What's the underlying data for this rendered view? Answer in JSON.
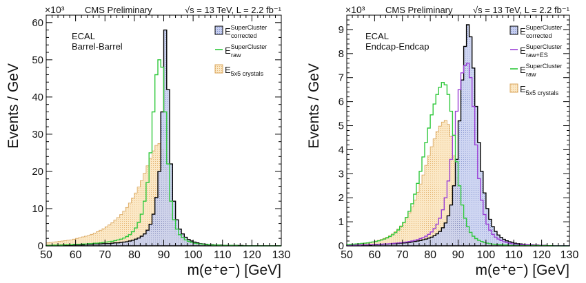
{
  "chart_data": [
    {
      "type": "histogram",
      "header_left": "CMS Preliminary",
      "header_right": "√s = 13 TeV, L = 2.2 fb⁻¹",
      "exponent_label": "×10³",
      "text_lines": [
        "ECAL",
        "Barrel-Barrel"
      ],
      "xlabel": "m(e⁺e⁻) [GeV]",
      "ylabel": "Events / GeV",
      "xlim": [
        50,
        130
      ],
      "ylim": [
        0,
        62
      ],
      "x_ticks": [
        50,
        60,
        70,
        80,
        90,
        100,
        110,
        120,
        130
      ],
      "y_ticks": [
        0,
        10,
        20,
        30,
        40,
        50,
        60
      ],
      "bin_edges": [
        50,
        51,
        52,
        53,
        54,
        55,
        56,
        57,
        58,
        59,
        60,
        61,
        62,
        63,
        64,
        65,
        66,
        67,
        68,
        69,
        70,
        71,
        72,
        73,
        74,
        75,
        76,
        77,
        78,
        79,
        80,
        81,
        82,
        83,
        84,
        85,
        86,
        87,
        88,
        89,
        90,
        91,
        92,
        93,
        94,
        95,
        96,
        97,
        98,
        99,
        100,
        101,
        102,
        103,
        104,
        105,
        106,
        107,
        108,
        109,
        110,
        111,
        112,
        113,
        114,
        115,
        116,
        117,
        118,
        119,
        120,
        121,
        122,
        123,
        124,
        125,
        126,
        127,
        128,
        129,
        130
      ],
      "series": [
        {
          "name": "E_corrected^SuperCluster",
          "legend_main": "E",
          "legend_sup": "SuperCluster",
          "legend_sub": "corrected",
          "style": "filled",
          "fill": "#b9c3e6",
          "stroke": "#000000",
          "values": [
            0.1,
            0.1,
            0.1,
            0.1,
            0.1,
            0.2,
            0.2,
            0.2,
            0.2,
            0.3,
            0.3,
            0.3,
            0.3,
            0.4,
            0.4,
            0.4,
            0.5,
            0.5,
            0.5,
            0.6,
            0.6,
            0.6,
            0.7,
            0.8,
            0.8,
            0.9,
            1.0,
            1.1,
            1.3,
            1.5,
            1.8,
            2.1,
            2.6,
            3.2,
            4.2,
            5.8,
            8.5,
            13.0,
            20.0,
            36.0,
            58.0,
            42.0,
            22.0,
            12.0,
            7.0,
            4.5,
            3.2,
            2.3,
            1.7,
            1.3,
            1.0,
            0.8,
            0.6,
            0.5,
            0.4,
            0.3,
            0.3,
            0.2,
            0.2,
            0.2,
            0.1,
            0.1,
            0.1,
            0.1,
            0.1,
            0.1,
            0.1,
            0.0,
            0.0,
            0.0,
            0.0,
            0.0,
            0.0,
            0.0,
            0.0,
            0.0,
            0.0,
            0.0,
            0.0,
            0.0
          ]
        },
        {
          "name": "E_raw^SuperCluster",
          "legend_main": "E",
          "legend_sup": "SuperCluster",
          "legend_sub": "raw",
          "style": "line",
          "fill": "none",
          "stroke": "#2fc83b",
          "values": [
            0.1,
            0.1,
            0.2,
            0.2,
            0.2,
            0.2,
            0.3,
            0.3,
            0.3,
            0.4,
            0.4,
            0.4,
            0.5,
            0.5,
            0.6,
            0.6,
            0.7,
            0.7,
            0.8,
            0.9,
            1.0,
            1.1,
            1.2,
            1.4,
            1.6,
            1.8,
            2.1,
            2.5,
            3.0,
            3.8,
            4.8,
            6.3,
            8.5,
            12.0,
            17.0,
            25.0,
            36.0,
            46.0,
            50.0,
            48.0,
            36.0,
            22.0,
            12.0,
            7.0,
            4.5,
            3.0,
            2.2,
            1.6,
            1.2,
            0.9,
            0.7,
            0.6,
            0.5,
            0.4,
            0.3,
            0.3,
            0.2,
            0.2,
            0.2,
            0.1,
            0.1,
            0.1,
            0.1,
            0.1,
            0.1,
            0.0,
            0.0,
            0.0,
            0.0,
            0.0,
            0.0,
            0.0,
            0.0,
            0.0,
            0.0,
            0.0,
            0.0,
            0.0,
            0.0,
            0.0
          ]
        },
        {
          "name": "E_5x5 crystals",
          "legend_main": "E",
          "legend_sup": "",
          "legend_sub": "5x5 crystals",
          "style": "filled",
          "fill": "#f9e3bd",
          "stroke": "#d9a45a",
          "values": [
            0.8,
            0.9,
            1.0,
            1.1,
            1.2,
            1.3,
            1.4,
            1.5,
            1.6,
            1.8,
            2.0,
            2.2,
            2.4,
            2.6,
            2.8,
            3.1,
            3.4,
            3.8,
            4.2,
            4.6,
            5.1,
            5.6,
            6.2,
            6.9,
            7.6,
            8.4,
            9.3,
            10.3,
            11.5,
            12.8,
            14.2,
            15.8,
            17.5,
            19.5,
            21.5,
            23.5,
            25.5,
            27.0,
            27.5,
            26.0,
            21.0,
            14.0,
            8.5,
            5.0,
            3.0,
            2.0,
            1.4,
            1.0,
            0.7,
            0.5,
            0.4,
            0.3,
            0.2,
            0.2,
            0.1,
            0.1,
            0.1,
            0.1,
            0.0,
            0.0,
            0.0,
            0.0,
            0.0,
            0.0,
            0.0,
            0.0,
            0.0,
            0.0,
            0.0,
            0.0,
            0.0,
            0.0,
            0.0,
            0.0,
            0.0,
            0.0,
            0.0,
            0.0,
            0.0,
            0.0
          ]
        }
      ]
    },
    {
      "type": "histogram",
      "header_left": "CMS Preliminary",
      "header_right": "√s = 13 TeV, L = 2.2 fb⁻¹",
      "exponent_label": "×10³",
      "text_lines": [
        "ECAL",
        "Endcap-Endcap"
      ],
      "xlabel": "m(e⁺e⁻) [GeV]",
      "ylabel": "Events / GeV",
      "xlim": [
        50,
        130
      ],
      "ylim": [
        0,
        9.6
      ],
      "x_ticks": [
        50,
        60,
        70,
        80,
        90,
        100,
        110,
        120,
        130
      ],
      "y_ticks": [
        0,
        1,
        2,
        3,
        4,
        5,
        6,
        7,
        8,
        9
      ],
      "bin_edges": [
        50,
        51,
        52,
        53,
        54,
        55,
        56,
        57,
        58,
        59,
        60,
        61,
        62,
        63,
        64,
        65,
        66,
        67,
        68,
        69,
        70,
        71,
        72,
        73,
        74,
        75,
        76,
        77,
        78,
        79,
        80,
        81,
        82,
        83,
        84,
        85,
        86,
        87,
        88,
        89,
        90,
        91,
        92,
        93,
        94,
        95,
        96,
        97,
        98,
        99,
        100,
        101,
        102,
        103,
        104,
        105,
        106,
        107,
        108,
        109,
        110,
        111,
        112,
        113,
        114,
        115,
        116,
        117,
        118,
        119,
        120,
        121,
        122,
        123,
        124,
        125,
        126,
        127,
        128,
        129,
        130
      ],
      "series": [
        {
          "name": "E_corrected^SuperCluster",
          "legend_main": "E",
          "legend_sup": "SuperCluster",
          "legend_sub": "corrected",
          "style": "filled",
          "fill": "#b9c3e6",
          "stroke": "#000000",
          "values": [
            0.02,
            0.02,
            0.02,
            0.03,
            0.03,
            0.03,
            0.04,
            0.04,
            0.04,
            0.05,
            0.05,
            0.06,
            0.06,
            0.07,
            0.07,
            0.08,
            0.08,
            0.09,
            0.1,
            0.11,
            0.12,
            0.13,
            0.14,
            0.16,
            0.18,
            0.2,
            0.22,
            0.25,
            0.28,
            0.32,
            0.36,
            0.42,
            0.5,
            0.6,
            0.75,
            0.95,
            1.25,
            1.7,
            2.5,
            3.6,
            5.2,
            6.9,
            8.3,
            9.2,
            8.7,
            7.4,
            5.8,
            4.3,
            3.1,
            2.2,
            1.55,
            1.1,
            0.8,
            0.6,
            0.45,
            0.35,
            0.27,
            0.21,
            0.17,
            0.14,
            0.11,
            0.09,
            0.08,
            0.06,
            0.05,
            0.04,
            0.04,
            0.03,
            0.03,
            0.02,
            0.02,
            0.02,
            0.01,
            0.01,
            0.01,
            0.01,
            0.01,
            0.01,
            0.01,
            0.01
          ]
        },
        {
          "name": "E_raw+ES^SuperCluster",
          "legend_main": "E",
          "legend_sup": "SuperCluster",
          "legend_sub": "raw+ES",
          "style": "line",
          "fill": "none",
          "stroke": "#9b3fd6",
          "values": [
            0.02,
            0.02,
            0.03,
            0.03,
            0.03,
            0.04,
            0.04,
            0.04,
            0.05,
            0.05,
            0.06,
            0.06,
            0.07,
            0.08,
            0.08,
            0.09,
            0.1,
            0.11,
            0.12,
            0.13,
            0.15,
            0.16,
            0.18,
            0.2,
            0.23,
            0.26,
            0.3,
            0.34,
            0.4,
            0.48,
            0.58,
            0.72,
            0.9,
            1.15,
            1.5,
            2.0,
            2.7,
            3.6,
            4.6,
            5.6,
            6.5,
            7.2,
            7.5,
            7.6,
            7.0,
            5.8,
            4.2,
            2.8,
            1.9,
            1.3,
            0.9,
            0.65,
            0.48,
            0.36,
            0.28,
            0.22,
            0.17,
            0.14,
            0.11,
            0.09,
            0.07,
            0.06,
            0.05,
            0.04,
            0.04,
            0.03,
            0.03,
            0.02,
            0.02,
            0.02,
            0.02,
            0.01,
            0.01,
            0.01,
            0.01,
            0.01,
            0.01,
            0.01,
            0.01,
            0.01
          ]
        },
        {
          "name": "E_raw^SuperCluster",
          "legend_main": "E",
          "legend_sup": "SuperCluster",
          "legend_sub": "raw",
          "style": "line",
          "fill": "none",
          "stroke": "#2fc83b",
          "values": [
            0.05,
            0.06,
            0.07,
            0.08,
            0.09,
            0.1,
            0.11,
            0.12,
            0.14,
            0.16,
            0.18,
            0.21,
            0.24,
            0.28,
            0.33,
            0.39,
            0.46,
            0.55,
            0.66,
            0.8,
            0.97,
            1.18,
            1.44,
            1.75,
            2.15,
            2.6,
            3.1,
            3.7,
            4.3,
            4.9,
            5.45,
            5.9,
            6.3,
            6.6,
            6.8,
            6.7,
            6.3,
            5.6,
            4.6,
            3.5,
            2.5,
            1.7,
            1.15,
            0.8,
            0.56,
            0.4,
            0.3,
            0.23,
            0.18,
            0.14,
            0.11,
            0.09,
            0.07,
            0.06,
            0.05,
            0.04,
            0.03,
            0.03,
            0.02,
            0.02,
            0.02,
            0.02,
            0.01,
            0.01,
            0.01,
            0.01,
            0.01,
            0.01,
            0.01,
            0.01,
            0.01,
            0.01,
            0.01,
            0.01,
            0.0,
            0.0,
            0.0,
            0.0,
            0.0,
            0.0
          ]
        },
        {
          "name": "E_5x5 crystals",
          "legend_main": "E",
          "legend_sup": "",
          "legend_sub": "5x5 crystals",
          "style": "filled",
          "fill": "#f9e3bd",
          "stroke": "#d9a45a",
          "values": [
            0.05,
            0.06,
            0.07,
            0.08,
            0.09,
            0.1,
            0.12,
            0.13,
            0.15,
            0.17,
            0.2,
            0.23,
            0.27,
            0.31,
            0.36,
            0.42,
            0.5,
            0.59,
            0.7,
            0.83,
            0.98,
            1.16,
            1.37,
            1.62,
            1.9,
            2.22,
            2.57,
            2.95,
            3.35,
            3.75,
            4.12,
            4.45,
            4.75,
            4.98,
            5.15,
            5.22,
            5.05,
            4.55,
            3.75,
            2.85,
            2.0,
            1.35,
            0.9,
            0.6,
            0.42,
            0.3,
            0.22,
            0.17,
            0.13,
            0.1,
            0.08,
            0.06,
            0.05,
            0.04,
            0.03,
            0.03,
            0.02,
            0.02,
            0.02,
            0.01,
            0.01,
            0.01,
            0.01,
            0.01,
            0.01,
            0.0,
            0.0,
            0.0,
            0.0,
            0.0,
            0.0,
            0.0,
            0.0,
            0.0,
            0.0,
            0.0,
            0.0,
            0.0,
            0.0,
            0.0
          ]
        }
      ]
    }
  ]
}
